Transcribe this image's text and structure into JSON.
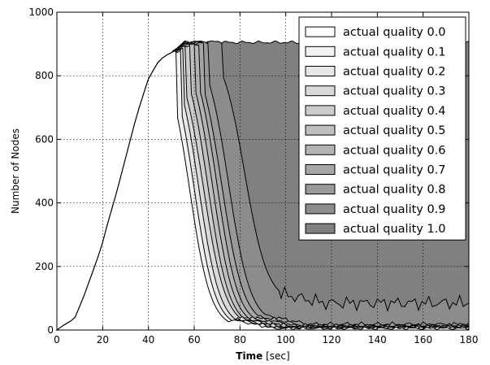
{
  "chart_data": {
    "type": "area",
    "title": "",
    "xlabel_bold": "Time",
    "xlabel_unit": "[sec]",
    "ylabel": "Number of Nodes",
    "xlim": [
      0,
      180
    ],
    "ylim": [
      0,
      1000
    ],
    "xticks": [
      "0",
      "20",
      "40",
      "60",
      "80",
      "100",
      "120",
      "140",
      "160",
      "180"
    ],
    "yticks": [
      "0",
      "200",
      "400",
      "600",
      "800",
      "1000"
    ],
    "grid": true,
    "legend_position": "top-right",
    "common_curve": {
      "x": [
        0,
        3,
        6,
        8,
        10,
        12,
        14,
        16,
        18,
        20,
        22,
        24,
        26,
        28,
        30,
        32,
        34,
        36,
        38,
        40,
        42,
        44,
        46,
        48,
        50
      ],
      "y": [
        0,
        15,
        28,
        40,
        75,
        110,
        150,
        190,
        230,
        275,
        330,
        380,
        430,
        485,
        540,
        595,
        650,
        700,
        745,
        790,
        815,
        840,
        855,
        865,
        872
      ]
    },
    "series": [
      {
        "name": "actual quality 0.0",
        "color": "#ffffff",
        "plateau": 880,
        "drop_start": 52,
        "drop_mid": 58,
        "drop_end": 75,
        "tail": 5
      },
      {
        "name": "actual quality 0.1",
        "color": "#f2f2f2",
        "plateau": 885,
        "drop_start": 54,
        "drop_mid": 60,
        "drop_end": 77,
        "tail": 6
      },
      {
        "name": "actual quality 0.2",
        "color": "#e6e6e6",
        "plateau": 888,
        "drop_start": 55,
        "drop_mid": 62,
        "drop_end": 78,
        "tail": 7
      },
      {
        "name": "actual quality 0.3",
        "color": "#d9d9d9",
        "plateau": 892,
        "drop_start": 56,
        "drop_mid": 64,
        "drop_end": 80,
        "tail": 8
      },
      {
        "name": "actual quality 0.4",
        "color": "#cccccc",
        "plateau": 895,
        "drop_start": 58,
        "drop_mid": 66,
        "drop_end": 81,
        "tail": 9
      },
      {
        "name": "actual quality 0.5",
        "color": "#bfbfbf",
        "plateau": 898,
        "drop_start": 60,
        "drop_mid": 68,
        "drop_end": 83,
        "tail": 10
      },
      {
        "name": "actual quality 0.6",
        "color": "#b3b3b3",
        "plateau": 900,
        "drop_start": 62,
        "drop_mid": 70,
        "drop_end": 85,
        "tail": 12
      },
      {
        "name": "actual quality 0.7",
        "color": "#a6a6a6",
        "plateau": 902,
        "drop_start": 64,
        "drop_mid": 72,
        "drop_end": 88,
        "tail": 14
      },
      {
        "name": "actual quality 0.8",
        "color": "#999999",
        "plateau": 905,
        "drop_start": 66,
        "drop_mid": 75,
        "drop_end": 90,
        "tail": 18
      },
      {
        "name": "actual quality 0.9",
        "color": "#8c8c8c",
        "plateau": 907,
        "drop_start": 72,
        "drop_mid": 82,
        "drop_end": 97,
        "tail": 85
      },
      {
        "name": "actual quality 1.0",
        "color": "#808080",
        "plateau": 905,
        "drop_start": 180,
        "drop_mid": 180,
        "drop_end": 180,
        "tail": 895
      }
    ]
  }
}
